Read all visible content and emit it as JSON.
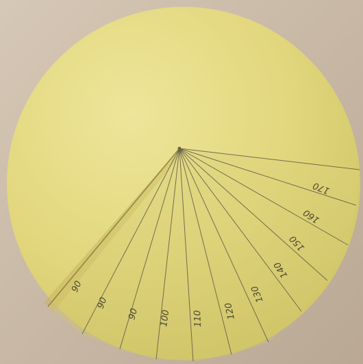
{
  "scene": {
    "subject": "paper-cone-template",
    "colors": {
      "background_wall": "#cfc0ad",
      "paper_light": "#e8df88",
      "paper_mid": "#d8ce72",
      "paper_shadow": "#c3b85c",
      "ruled_line": "#5f5a45",
      "pencil": "#4b4632"
    }
  },
  "angle_labels": [
    {
      "text": "90"
    },
    {
      "text": "90"
    },
    {
      "text": "90"
    },
    {
      "text": "100"
    },
    {
      "text": "110"
    },
    {
      "text": "120"
    },
    {
      "text": "130"
    },
    {
      "text": "140"
    },
    {
      "text": "150"
    },
    {
      "text": "160"
    },
    {
      "text": "170"
    }
  ]
}
